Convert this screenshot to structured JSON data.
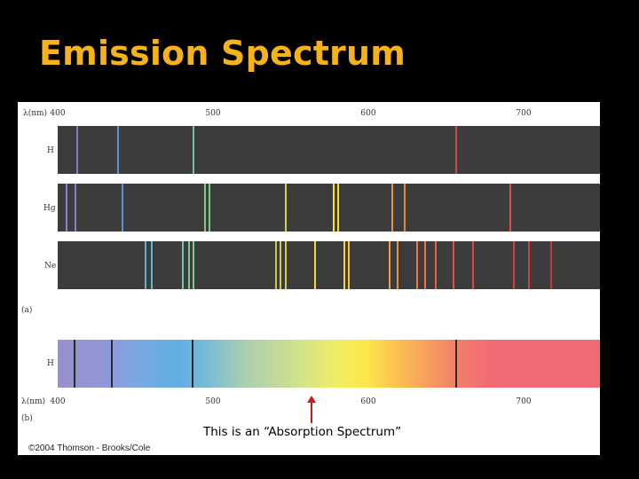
{
  "slide": {
    "title": "Emission Spectrum"
  },
  "figure": {
    "axis_label": "λ(nm)",
    "ticks": [
      {
        "nm": 400,
        "label": "400"
      },
      {
        "nm": 500,
        "label": "500"
      },
      {
        "nm": 600,
        "label": "600"
      },
      {
        "nm": 700,
        "label": "700"
      }
    ],
    "panel_a_label": "(a)",
    "panel_b_label": "(b)",
    "emission_rows": [
      {
        "element": "H",
        "lines_nm": [
          {
            "nm": 412,
            "color": "#8a78c8"
          },
          {
            "nm": 438,
            "color": "#5f8fd8"
          },
          {
            "nm": 487,
            "color": "#6fc1a0"
          },
          {
            "nm": 656,
            "color": "#d04848"
          }
        ]
      },
      {
        "element": "Hg",
        "lines_nm": [
          {
            "nm": 405,
            "color": "#9080d0"
          },
          {
            "nm": 411,
            "color": "#8a7ad0"
          },
          {
            "nm": 441,
            "color": "#5a90e0"
          },
          {
            "nm": 494,
            "color": "#80c880"
          },
          {
            "nm": 497,
            "color": "#7cc880"
          },
          {
            "nm": 546,
            "color": "#d8d050"
          },
          {
            "nm": 577,
            "color": "#f5e040"
          },
          {
            "nm": 580,
            "color": "#f5dc40"
          },
          {
            "nm": 615,
            "color": "#e89040"
          },
          {
            "nm": 623,
            "color": "#e88048"
          },
          {
            "nm": 691,
            "color": "#d85050"
          }
        ]
      },
      {
        "element": "Ne",
        "lines_nm": [
          {
            "nm": 456,
            "color": "#60b0d0"
          },
          {
            "nm": 460,
            "color": "#60b8c8"
          },
          {
            "nm": 480,
            "color": "#70c8a0"
          },
          {
            "nm": 484,
            "color": "#78c890"
          },
          {
            "nm": 487,
            "color": "#80c888"
          },
          {
            "nm": 540,
            "color": "#c8c850"
          },
          {
            "nm": 543,
            "color": "#d0c850"
          },
          {
            "nm": 546,
            "color": "#d8c850"
          },
          {
            "nm": 565,
            "color": "#f0d840"
          },
          {
            "nm": 584,
            "color": "#f5d040"
          },
          {
            "nm": 587,
            "color": "#f5c840"
          },
          {
            "nm": 613,
            "color": "#f0a040"
          },
          {
            "nm": 618,
            "color": "#f09040"
          },
          {
            "nm": 631,
            "color": "#f07848"
          },
          {
            "nm": 636,
            "color": "#f07048"
          },
          {
            "nm": 643,
            "color": "#e86048"
          },
          {
            "nm": 654,
            "color": "#e05048"
          },
          {
            "nm": 667,
            "color": "#d84848"
          },
          {
            "nm": 693,
            "color": "#d04040"
          },
          {
            "nm": 703,
            "color": "#c84040"
          },
          {
            "nm": 717,
            "color": "#c03838"
          }
        ]
      }
    ],
    "absorption_row": {
      "element": "H",
      "lines_nm": [
        410,
        434,
        486,
        656
      ]
    },
    "caption": "This is an “Absorption Spectrum”",
    "copyright": "©2004 Thomson - Brooks/Cole",
    "colors": {
      "title": "#f5b21a",
      "background": "#000000",
      "panel": "#3c3c3c",
      "arrow": "#d01818"
    }
  }
}
